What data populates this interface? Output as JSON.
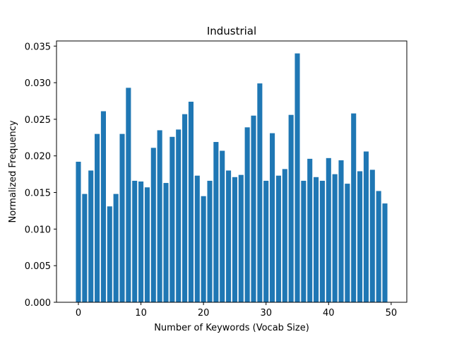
{
  "chart_data": {
    "type": "bar",
    "title": "Industrial",
    "xlabel": "Number of Keywords (Vocab Size)",
    "ylabel": "Normalized Frequency",
    "x": [
      0,
      1,
      2,
      3,
      4,
      5,
      6,
      7,
      8,
      9,
      10,
      11,
      12,
      13,
      14,
      15,
      16,
      17,
      18,
      19,
      20,
      21,
      22,
      23,
      24,
      25,
      26,
      27,
      28,
      29,
      30,
      31,
      32,
      33,
      34,
      35,
      36,
      37,
      38,
      39,
      40,
      41,
      42,
      43,
      44,
      45,
      46,
      47,
      48,
      49
    ],
    "values": [
      0.0192,
      0.0148,
      0.018,
      0.023,
      0.0261,
      0.0131,
      0.0148,
      0.023,
      0.0293,
      0.0166,
      0.0165,
      0.0157,
      0.0211,
      0.0235,
      0.0163,
      0.0226,
      0.0236,
      0.0257,
      0.0274,
      0.0173,
      0.0145,
      0.0166,
      0.0219,
      0.0207,
      0.018,
      0.0171,
      0.0174,
      0.0239,
      0.0255,
      0.0299,
      0.0166,
      0.0231,
      0.0173,
      0.0182,
      0.0256,
      0.034,
      0.0166,
      0.0196,
      0.0171,
      0.0166,
      0.0197,
      0.0175,
      0.0194,
      0.0162,
      0.0258,
      0.0179,
      0.0206,
      0.0181,
      0.0152,
      0.0135
    ],
    "xlim": [
      -3.5,
      52.5
    ],
    "ylim": [
      0,
      0.0357
    ],
    "xticks": [
      0,
      10,
      20,
      30,
      40,
      50
    ],
    "xtick_labels": [
      "0",
      "10",
      "20",
      "30",
      "40",
      "50"
    ],
    "yticks": [
      0,
      0.005,
      0.01,
      0.015,
      0.02,
      0.025,
      0.03,
      0.035
    ],
    "ytick_labels": [
      "0.000",
      "0.005",
      "0.010",
      "0.015",
      "0.020",
      "0.025",
      "0.030",
      "0.035"
    ],
    "bar_color": "#1f77b4",
    "grid": false,
    "legend": "none"
  }
}
